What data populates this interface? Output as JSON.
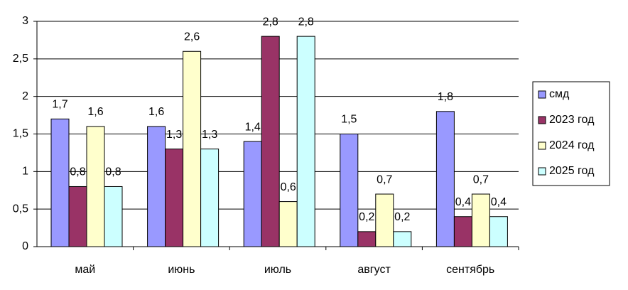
{
  "chart_data": {
    "type": "bar",
    "categories": [
      "май",
      "июнь",
      "июль",
      "август",
      "сентябрь"
    ],
    "series": [
      {
        "name": "смд",
        "color": "#9999ff",
        "values": [
          1.7,
          1.6,
          1.4,
          1.5,
          1.8
        ],
        "value_labels": [
          "1,7",
          "1,6",
          "1,4",
          "1,5",
          "1,8"
        ]
      },
      {
        "name": "2023 год",
        "color": "#993366",
        "values": [
          0.8,
          1.3,
          2.8,
          0.2,
          0.4
        ],
        "value_labels": [
          "0,8",
          "1,3",
          "2,8",
          "0,2",
          "0,4"
        ]
      },
      {
        "name": "2024 год",
        "color": "#ffffcc",
        "values": [
          1.6,
          2.6,
          0.6,
          0.7,
          0.7
        ],
        "value_labels": [
          "1,6",
          "2,6",
          "0,6",
          "0,7",
          "0,7"
        ]
      },
      {
        "name": "2025 год",
        "color": "#ccffff",
        "values": [
          0.8,
          1.3,
          2.8,
          0.2,
          0.4
        ],
        "value_labels": [
          "0,8",
          "1,3",
          "2,8",
          "0,2",
          "0,4"
        ]
      }
    ],
    "ylim": [
      0,
      3
    ],
    "yticks": [
      0,
      {
        "value": 0.5,
        "label": "0,5"
      },
      1,
      {
        "value": 1.5,
        "label": "1,5"
      },
      2,
      {
        "value": 2.5,
        "label": "2,5"
      },
      3
    ],
    "grid": true,
    "legend": "right"
  }
}
